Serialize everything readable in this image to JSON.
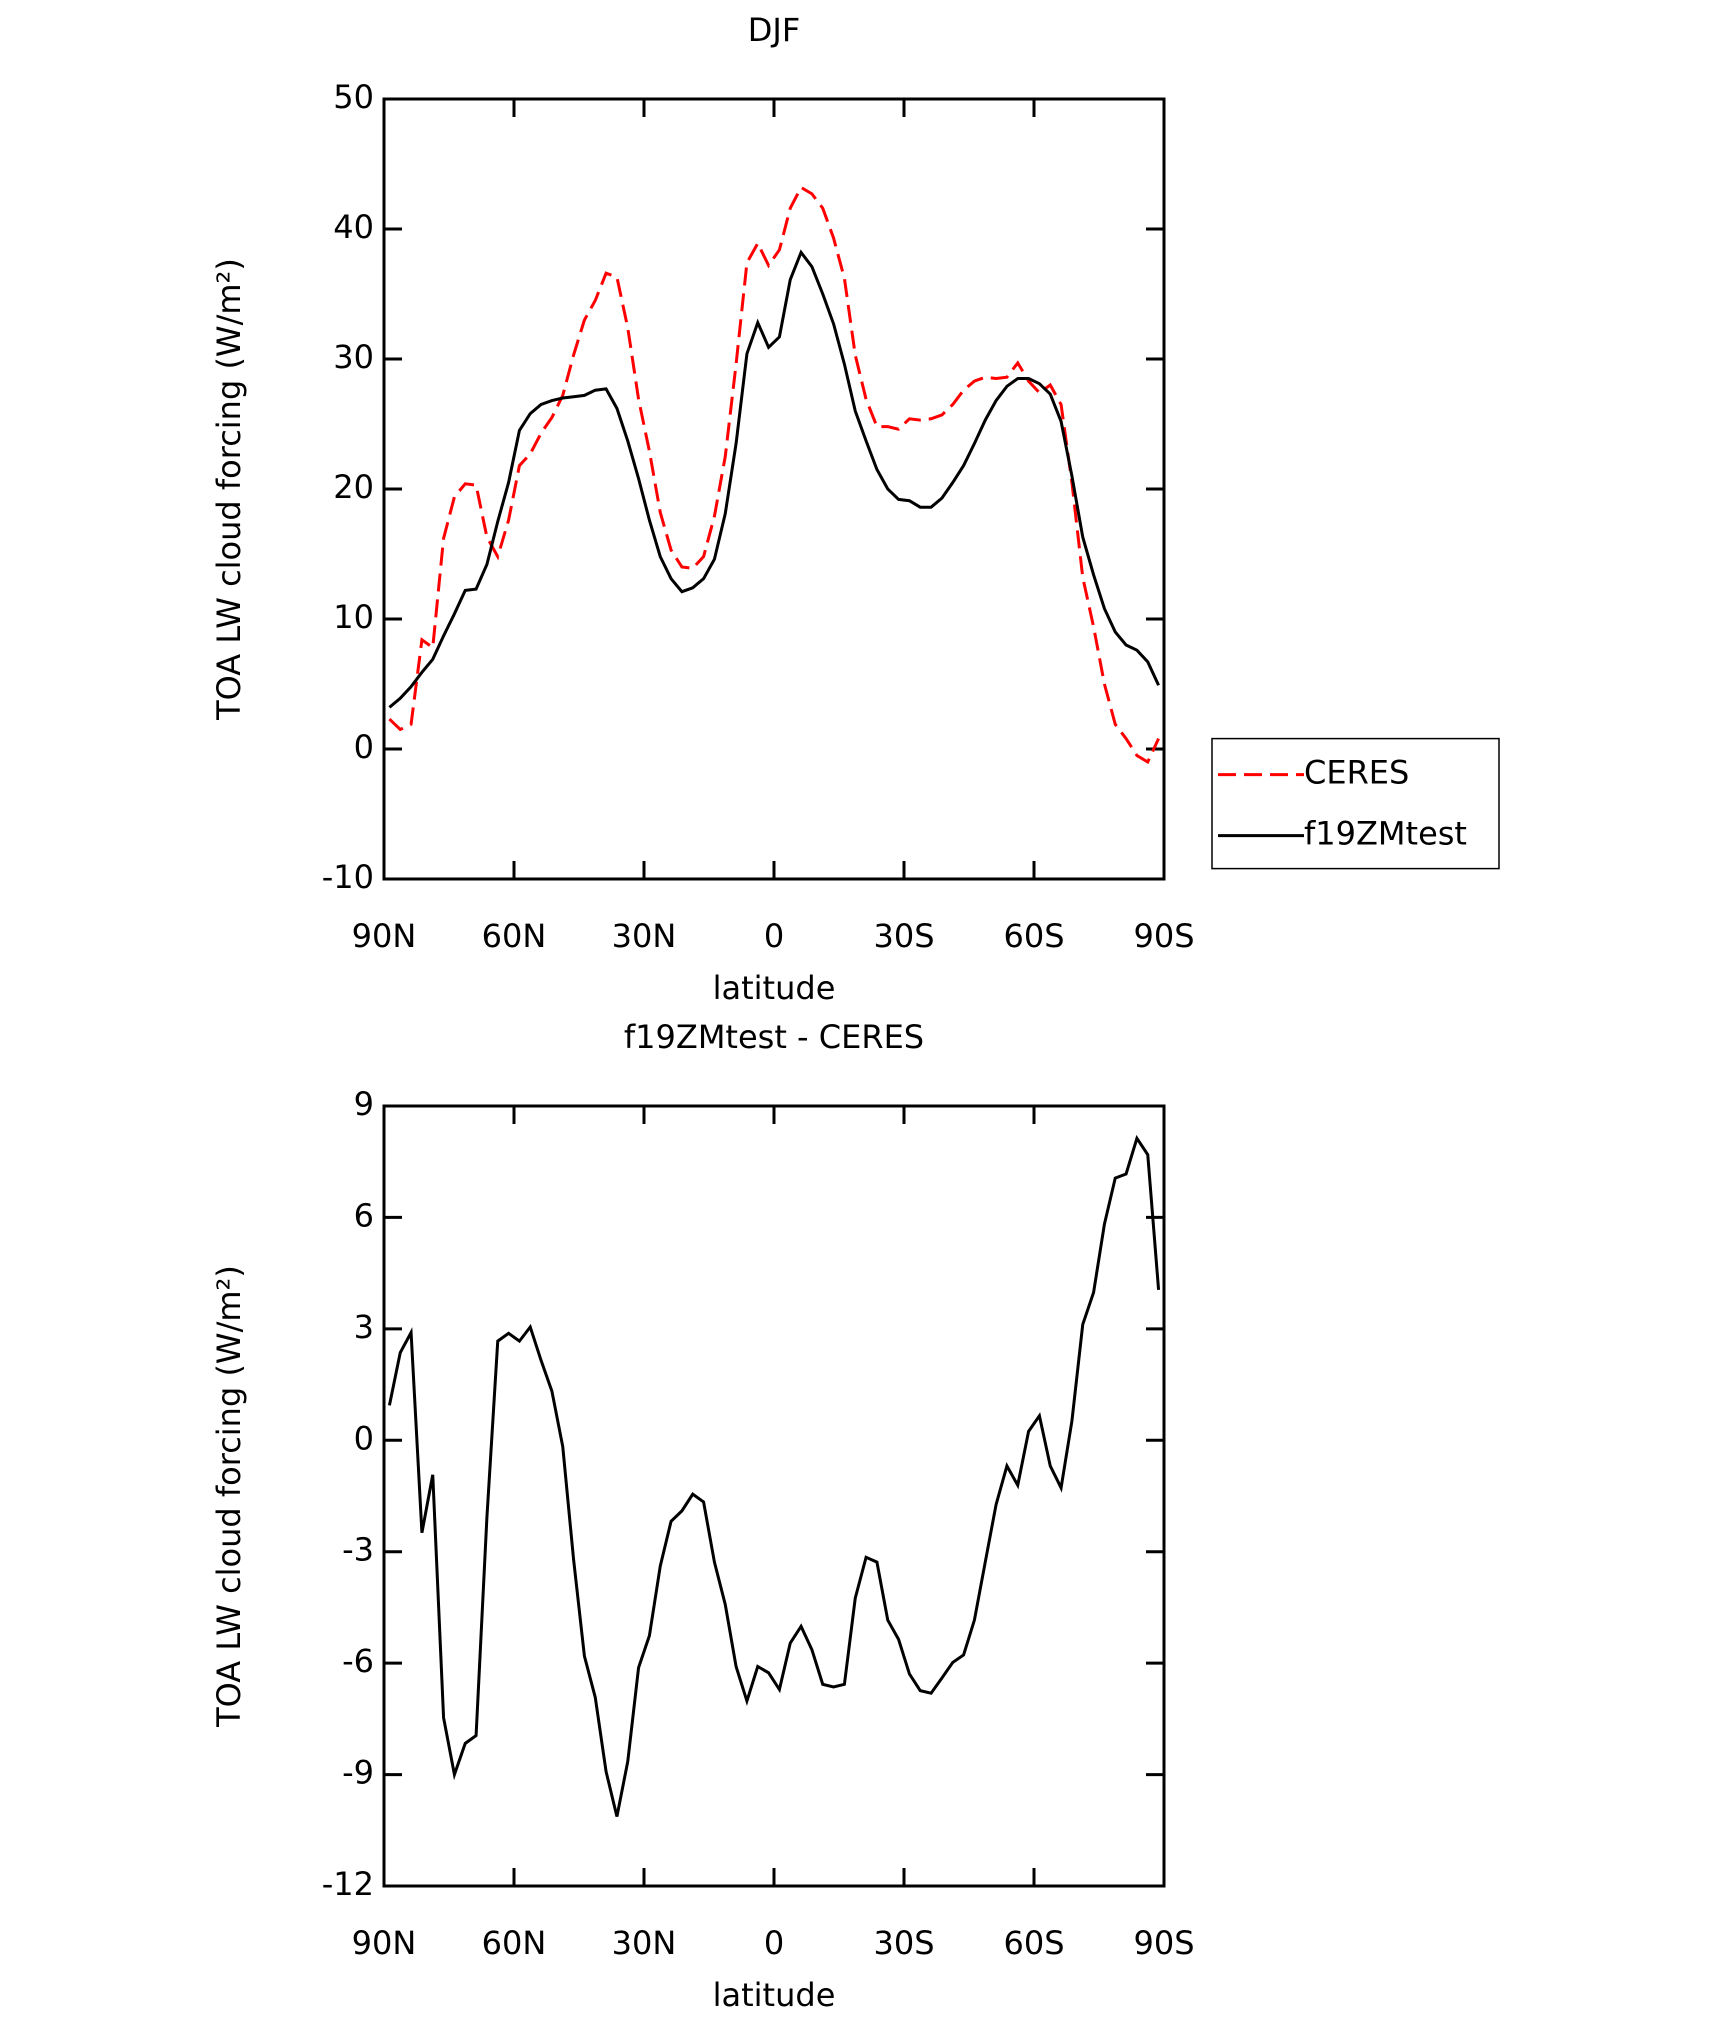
{
  "chart_data": [
    {
      "type": "line",
      "title": "DJF",
      "x_label": "latitude",
      "y_label": "TOA LW cloud forcing (W/m²)",
      "x": [
        88.75,
        86.25,
        83.75,
        81.25,
        78.75,
        76.25,
        73.75,
        71.25,
        68.75,
        66.25,
        63.75,
        61.25,
        58.75,
        56.25,
        53.75,
        51.25,
        48.75,
        46.25,
        43.75,
        41.25,
        38.75,
        36.25,
        33.75,
        31.25,
        28.75,
        26.25,
        23.75,
        21.25,
        18.75,
        16.25,
        13.75,
        11.25,
        8.75,
        6.25,
        3.75,
        1.25,
        -1.25,
        -3.75,
        -6.25,
        -8.75,
        -11.25,
        -13.75,
        -16.25,
        -18.75,
        -21.25,
        -23.75,
        -26.25,
        -28.75,
        -31.25,
        -33.75,
        -36.25,
        -38.75,
        -41.25,
        -43.75,
        -46.25,
        -48.75,
        -51.25,
        -53.75,
        -56.25,
        -58.75,
        -61.25,
        -63.75,
        -66.25,
        -68.75,
        -71.25,
        -73.75,
        -76.25,
        -78.75,
        -81.25,
        -83.75,
        -86.25,
        -88.75
      ],
      "series": [
        {
          "name": "CERES",
          "color": "#ff0000",
          "linestyle": "dashed",
          "values": [
            2.3,
            1.5,
            1.9,
            8.4,
            7.8,
            16.2,
            19.4,
            20.4,
            20.3,
            16.3,
            14.8,
            17.6,
            21.8,
            22.7,
            24.3,
            25.5,
            27.2,
            30.3,
            33.0,
            34.5,
            36.6,
            36.3,
            32.4,
            26.9,
            22.9,
            18.2,
            15.3,
            14.0,
            13.9,
            14.8,
            17.9,
            22.5,
            29.6,
            37.4,
            38.9,
            37.2,
            38.4,
            41.6,
            43.2,
            42.7,
            41.6,
            39.3,
            36.2,
            30.3,
            26.9,
            24.8,
            24.8,
            24.6,
            25.4,
            25.3,
            25.4,
            25.7,
            26.5,
            27.6,
            28.3,
            28.6,
            28.5,
            28.6,
            29.7,
            28.3,
            27.4,
            28.0,
            26.5,
            20.5,
            13.2,
            9.4,
            5.0,
            1.9,
            0.8,
            -0.5,
            -1.0,
            0.8
          ]
        },
        {
          "name": "f19ZMtest",
          "color": "#000000",
          "linestyle": "solid",
          "values": [
            3.2,
            3.9,
            4.8,
            5.9,
            6.9,
            8.7,
            10.4,
            12.2,
            12.3,
            14.2,
            17.5,
            20.5,
            24.5,
            25.8,
            26.5,
            26.8,
            27.0,
            27.1,
            27.2,
            27.6,
            27.7,
            26.2,
            23.7,
            20.8,
            17.6,
            14.8,
            13.1,
            12.1,
            12.4,
            13.1,
            14.6,
            18.1,
            23.5,
            30.4,
            32.8,
            30.9,
            31.7,
            36.1,
            38.2,
            37.1,
            35.0,
            32.7,
            29.6,
            26.0,
            23.7,
            21.5,
            20.0,
            19.2,
            19.1,
            18.6,
            18.6,
            19.3,
            20.5,
            21.8,
            23.5,
            25.3,
            26.8,
            27.9,
            28.5,
            28.5,
            28.1,
            27.3,
            25.2,
            21.0,
            16.3,
            13.4,
            10.8,
            9.0,
            8.0,
            7.6,
            6.7,
            4.9
          ]
        }
      ],
      "xlim": [
        90,
        -90
      ],
      "xticks": [
        {
          "value": 90,
          "label": "90N"
        },
        {
          "value": 60,
          "label": "60N"
        },
        {
          "value": 30,
          "label": "30N"
        },
        0,
        {
          "value": -30,
          "label": "30S"
        },
        {
          "value": -60,
          "label": "60S"
        },
        {
          "value": -90,
          "label": "90S"
        }
      ],
      "ylim": [
        -10,
        50
      ],
      "yticks": [
        -10,
        0,
        10,
        20,
        30,
        40,
        50
      ],
      "legend": "right"
    },
    {
      "type": "line",
      "title": "f19ZMtest - CERES",
      "x_label": "latitude",
      "y_label": "TOA LW cloud forcing (W/m²)",
      "x": [
        88.75,
        86.25,
        83.75,
        81.25,
        78.75,
        76.25,
        73.75,
        71.25,
        68.75,
        66.25,
        63.75,
        61.25,
        58.75,
        56.25,
        53.75,
        51.25,
        48.75,
        46.25,
        43.75,
        41.25,
        38.75,
        36.25,
        33.75,
        31.25,
        28.75,
        26.25,
        23.75,
        21.25,
        18.75,
        16.25,
        13.75,
        11.25,
        8.75,
        6.25,
        3.75,
        1.25,
        -1.25,
        -3.75,
        -6.25,
        -8.75,
        -11.25,
        -13.75,
        -16.25,
        -18.75,
        -21.25,
        -23.75,
        -26.25,
        -28.75,
        -31.25,
        -33.75,
        -36.25,
        -38.75,
        -41.25,
        -43.75,
        -46.25,
        -48.75,
        -51.25,
        -53.75,
        -56.25,
        -58.75,
        -61.25,
        -63.75,
        -66.25,
        -68.75,
        -71.25,
        -73.75,
        -76.25,
        -78.75,
        -81.25,
        -83.75,
        -86.25,
        -88.75
      ],
      "series": [
        {
          "color": "#000000",
          "linestyle": "solid",
          "values": [
            0.94,
            2.36,
            2.9,
            -2.49,
            -0.93,
            -7.47,
            -9.0,
            -8.16,
            -7.95,
            -2.07,
            2.67,
            2.88,
            2.67,
            3.05,
            2.15,
            1.32,
            -0.17,
            -3.21,
            -5.81,
            -6.92,
            -8.92,
            -10.13,
            -8.65,
            -6.12,
            -5.26,
            -3.39,
            -2.18,
            -1.9,
            -1.45,
            -1.66,
            -3.28,
            -4.42,
            -6.09,
            -7.02,
            -6.09,
            -6.26,
            -6.71,
            -5.46,
            -5.01,
            -5.64,
            -6.57,
            -6.64,
            -6.57,
            -4.25,
            -3.15,
            -3.28,
            -4.84,
            -5.36,
            -6.29,
            -6.74,
            -6.81,
            -6.4,
            -5.98,
            -5.78,
            -4.84,
            -3.28,
            -1.73,
            -0.69,
            -1.21,
            0.24,
            0.66,
            -0.69,
            -1.28,
            0.52,
            3.12,
            3.98,
            5.82,
            7.06,
            7.17,
            8.13,
            7.69,
            4.05
          ]
        }
      ],
      "xlim": [
        90,
        -90
      ],
      "xticks": [
        {
          "value": 90,
          "label": "90N"
        },
        {
          "value": 60,
          "label": "60N"
        },
        {
          "value": 30,
          "label": "30N"
        },
        0,
        {
          "value": -30,
          "label": "30S"
        },
        {
          "value": -60,
          "label": "60S"
        },
        {
          "value": -90,
          "label": "90S"
        }
      ],
      "ylim": [
        -12,
        9
      ],
      "yticks": [
        -12,
        -9,
        -6,
        -3,
        0,
        3,
        6,
        9
      ]
    }
  ]
}
